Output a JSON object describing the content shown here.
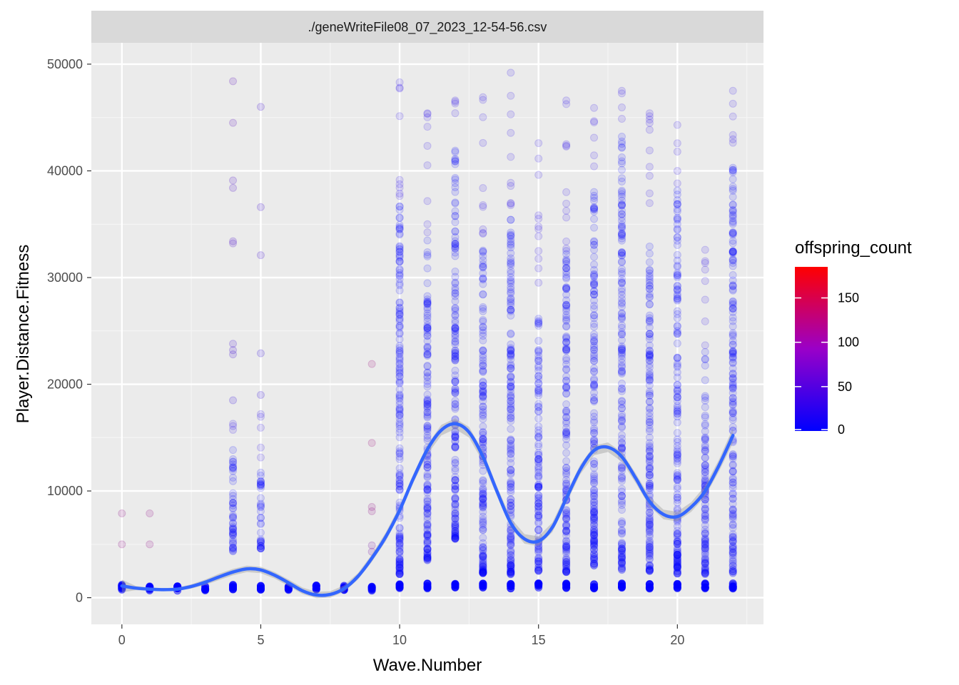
{
  "chart_data": {
    "type": "scatter",
    "facet_label": "./geneWriteFile08_07_2023_12-54-56.csv",
    "xlabel": "Wave.Number",
    "ylabel": "Player.Distance.Fitness",
    "xlim": [
      -1.1,
      23.1
    ],
    "ylim": [
      -2500,
      52000
    ],
    "x_ticks": [
      0,
      5,
      10,
      15,
      20
    ],
    "x_tick_labels": [
      "0",
      "5",
      "10",
      "15",
      "20"
    ],
    "y_ticks": [
      0,
      10000,
      20000,
      30000,
      40000,
      50000
    ],
    "y_tick_labels": [
      "0",
      "10000",
      "20000",
      "30000",
      "40000",
      "50000"
    ],
    "grid": true,
    "legend": {
      "title": "offspring_count",
      "placement": "right",
      "type": "gradient",
      "range": [
        0,
        185
      ],
      "breaks": [
        0,
        50,
        100,
        150
      ],
      "break_labels": [
        "0",
        "50",
        "100",
        "150"
      ],
      "low_color": "#0000ff",
      "high_color": "#ff0000"
    },
    "point_opacity": 0.12,
    "outliers": [
      {
        "x": 0,
        "y": 7900,
        "offspring_count": 100
      },
      {
        "x": 0,
        "y": 5000,
        "offspring_count": 100
      },
      {
        "x": 1,
        "y": 7900,
        "offspring_count": 100
      },
      {
        "x": 1,
        "y": 5000,
        "offspring_count": 100
      },
      {
        "x": 4,
        "y": 48400,
        "offspring_count": 60
      },
      {
        "x": 4,
        "y": 44500,
        "offspring_count": 60
      },
      {
        "x": 4,
        "y": 39100,
        "offspring_count": 50
      },
      {
        "x": 4,
        "y": 38400,
        "offspring_count": 50
      },
      {
        "x": 4,
        "y": 33400,
        "offspring_count": 50
      },
      {
        "x": 4,
        "y": 33200,
        "offspring_count": 50
      },
      {
        "x": 4,
        "y": 23800,
        "offspring_count": 40
      },
      {
        "x": 4,
        "y": 23200,
        "offspring_count": 40
      },
      {
        "x": 4,
        "y": 22800,
        "offspring_count": 40
      },
      {
        "x": 4,
        "y": 18500,
        "offspring_count": 30
      },
      {
        "x": 5,
        "y": 46000,
        "offspring_count": 40
      },
      {
        "x": 5,
        "y": 36600,
        "offspring_count": 40
      },
      {
        "x": 5,
        "y": 32100,
        "offspring_count": 40
      },
      {
        "x": 5,
        "y": 22900,
        "offspring_count": 30
      },
      {
        "x": 5,
        "y": 19000,
        "offspring_count": 30
      },
      {
        "x": 9,
        "y": 21900,
        "offspring_count": 110
      },
      {
        "x": 9,
        "y": 14500,
        "offspring_count": 110
      },
      {
        "x": 9,
        "y": 8500,
        "offspring_count": 100
      },
      {
        "x": 9,
        "y": 8100,
        "offspring_count": 100
      },
      {
        "x": 9,
        "y": 4900,
        "offspring_count": 80
      },
      {
        "x": 9,
        "y": 4300,
        "offspring_count": 80
      }
    ],
    "columns": [
      {
        "x": 0,
        "low": 700,
        "high": 1200,
        "max": 1200,
        "baseline": 1000
      },
      {
        "x": 1,
        "low": 700,
        "high": 1200,
        "max": 1200,
        "baseline": 900
      },
      {
        "x": 2,
        "low": 700,
        "high": 1100,
        "max": 1100,
        "baseline": 850
      },
      {
        "x": 3,
        "low": 700,
        "high": 1100,
        "max": 1100,
        "baseline": 850
      },
      {
        "x": 4,
        "low": 4200,
        "high": 13900,
        "max": 16300,
        "baseline": 1000
      },
      {
        "x": 5,
        "low": 4600,
        "high": 11800,
        "max": 17200,
        "baseline": 1000
      },
      {
        "x": 6,
        "low": 700,
        "high": 1100,
        "max": 1100,
        "baseline": 850
      },
      {
        "x": 7,
        "low": 700,
        "high": 1100,
        "max": 1100,
        "baseline": 900
      },
      {
        "x": 8,
        "low": 700,
        "high": 1100,
        "max": 1100,
        "baseline": 900
      },
      {
        "x": 9,
        "low": 700,
        "high": 1200,
        "max": 1200,
        "baseline": 900
      },
      {
        "x": 10,
        "low": 2200,
        "high": 37000,
        "max": 48300,
        "baseline": 1100
      },
      {
        "x": 11,
        "low": 3500,
        "high": 33800,
        "max": 45400,
        "baseline": 1100
      },
      {
        "x": 12,
        "low": 5500,
        "high": 42000,
        "max": 46600,
        "baseline": 1100
      },
      {
        "x": 13,
        "low": 2300,
        "high": 34000,
        "max": 46900,
        "baseline": 1100
      },
      {
        "x": 14,
        "low": 2200,
        "high": 36200,
        "max": 49200,
        "baseline": 1100
      },
      {
        "x": 15,
        "low": 2500,
        "high": 26600,
        "max": 42600,
        "baseline": 1100
      },
      {
        "x": 16,
        "low": 2400,
        "high": 32500,
        "max": 46600,
        "baseline": 1100
      },
      {
        "x": 17,
        "low": 3000,
        "high": 38700,
        "max": 45900,
        "baseline": 1100
      },
      {
        "x": 18,
        "low": 2600,
        "high": 43500,
        "max": 47500,
        "baseline": 1100
      },
      {
        "x": 19,
        "low": 2500,
        "high": 33500,
        "max": 45400,
        "baseline": 1100
      },
      {
        "x": 20,
        "low": 2200,
        "high": 38600,
        "max": 44300,
        "baseline": 1100
      },
      {
        "x": 21,
        "low": 2200,
        "high": 23200,
        "max": 32600,
        "baseline": 1100
      },
      {
        "x": 22,
        "low": 2300,
        "high": 40500,
        "max": 47500,
        "baseline": 1100
      }
    ],
    "smooth": {
      "method": "loess",
      "color": "#3366ff",
      "band_color": "#999999",
      "x": [
        0,
        0.5,
        1,
        1.5,
        2,
        2.5,
        3,
        3.5,
        4,
        4.5,
        5,
        5.5,
        6,
        6.5,
        7,
        7.5,
        8,
        8.5,
        9,
        9.5,
        10,
        10.5,
        11,
        11.5,
        12,
        12.5,
        13,
        13.5,
        14,
        14.5,
        15,
        15.5,
        16,
        16.5,
        17,
        17.5,
        18,
        18.5,
        19,
        19.5,
        20,
        20.5,
        21,
        21.5,
        22
      ],
      "y": [
        1100,
        900,
        800,
        750,
        800,
        1050,
        1450,
        1950,
        2400,
        2700,
        2600,
        2100,
        1400,
        650,
        250,
        300,
        850,
        2000,
        3700,
        5700,
        8200,
        11200,
        13900,
        15700,
        16300,
        15500,
        13200,
        10000,
        7000,
        5500,
        5300,
        6600,
        9300,
        12000,
        13800,
        14100,
        13200,
        11200,
        9000,
        7800,
        7600,
        8500,
        10000,
        12400,
        15200
      ],
      "band": [
        600,
        200,
        150,
        150,
        150,
        200,
        250,
        300,
        300,
        300,
        300,
        300,
        300,
        300,
        300,
        300,
        300,
        300,
        350,
        400,
        400,
        400,
        450,
        500,
        500,
        500,
        500,
        450,
        450,
        450,
        450,
        450,
        450,
        450,
        450,
        450,
        450,
        450,
        450,
        450,
        450,
        450,
        500,
        550,
        700
      ]
    }
  }
}
